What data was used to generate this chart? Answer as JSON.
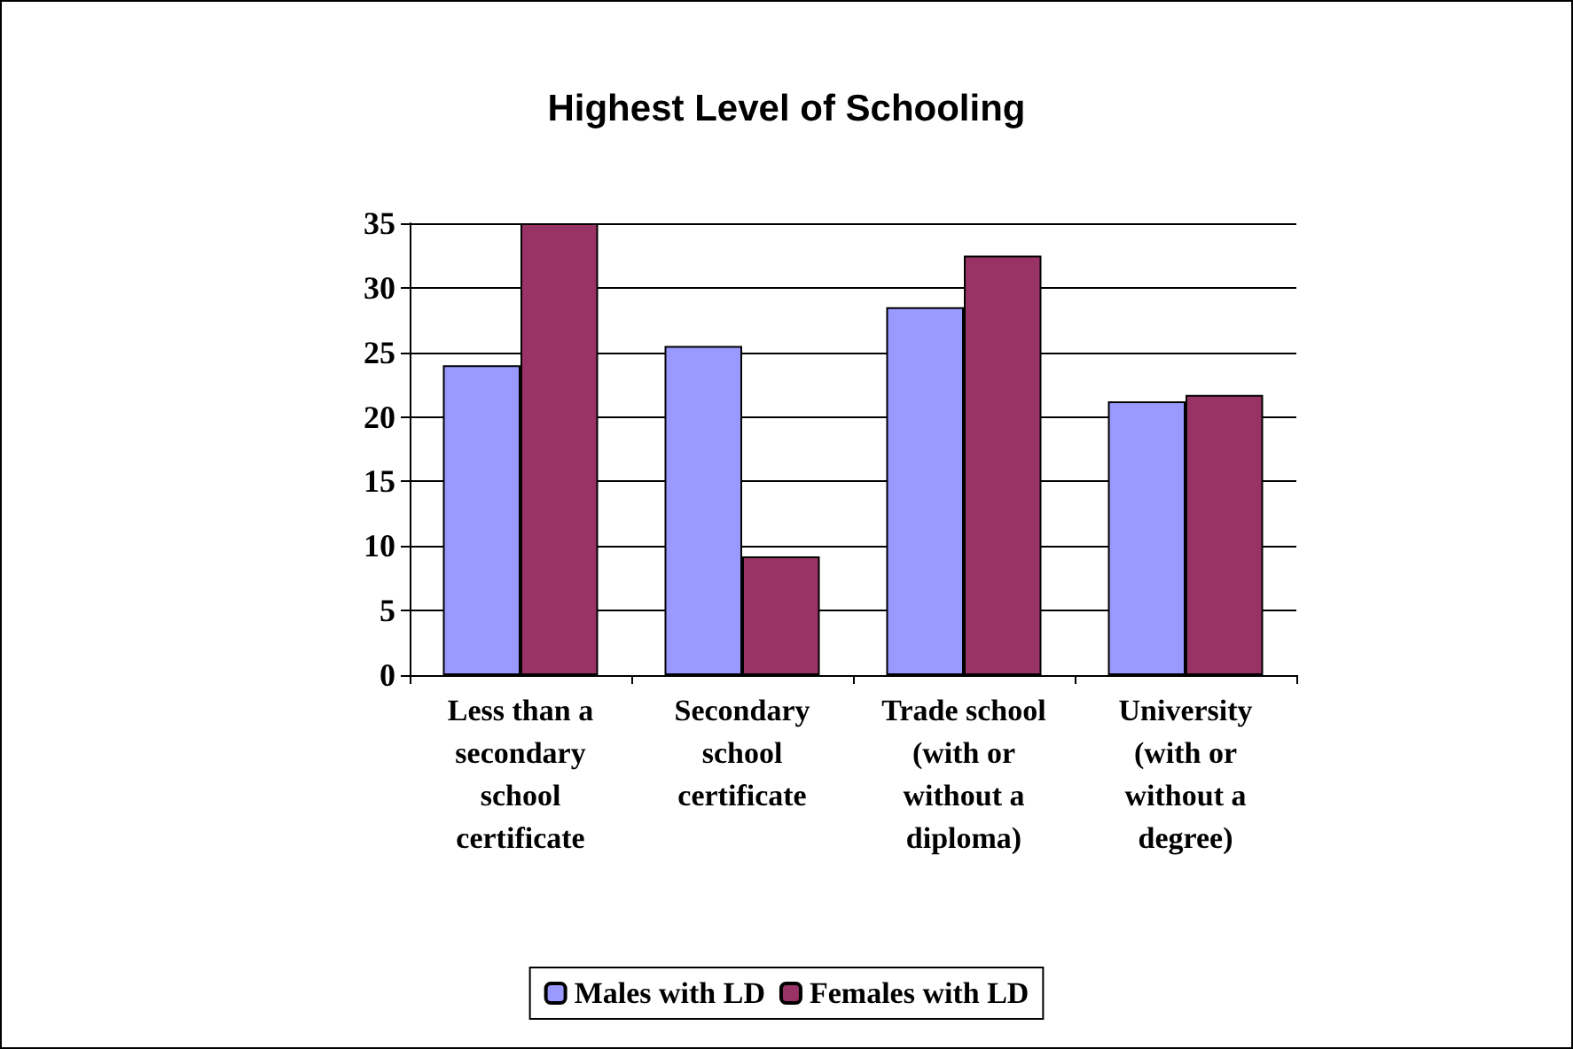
{
  "chart_data": {
    "type": "bar",
    "title": "Highest Level of Schooling",
    "categories": [
      "Less than a\nsecondary\nschool\ncertificate",
      "Secondary\nschool\ncertificate",
      "Trade school\n(with or\nwithout a\ndiploma)",
      "University\n(with or\nwithout a\ndegree)"
    ],
    "series": [
      {
        "name": "Males with LD",
        "color": "#9999ff",
        "values": [
          24,
          25.5,
          28.5,
          21.2
        ]
      },
      {
        "name": "Females with LD",
        "color": "#993366",
        "values": [
          35,
          9.2,
          32.5,
          21.7
        ]
      }
    ],
    "ylim": [
      0,
      35
    ],
    "yticks": [
      0,
      5,
      10,
      15,
      20,
      25,
      30,
      35
    ],
    "grid": "y",
    "legend": "bottom"
  }
}
